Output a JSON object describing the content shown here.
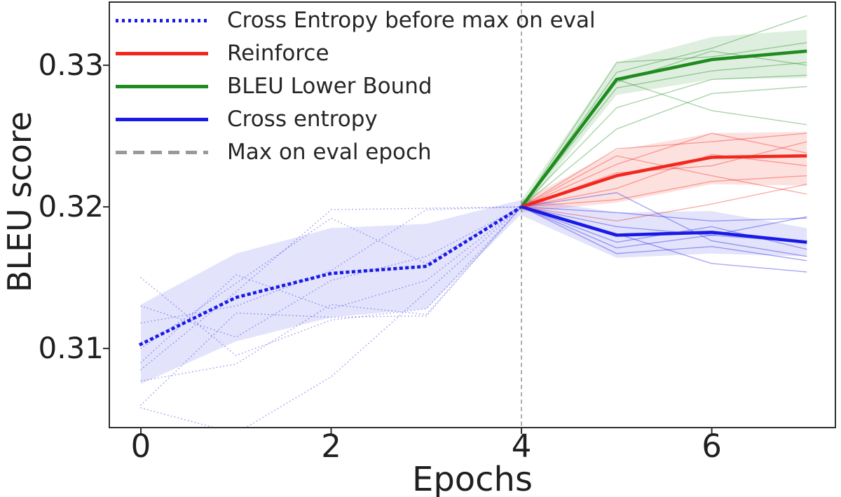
{
  "chart_data": {
    "type": "line",
    "title": "",
    "xlabel": "Epochs",
    "ylabel": "BLEU score",
    "xlim": [
      -0.3315,
      7.2995
    ],
    "ylim": [
      0.30441,
      0.33446
    ],
    "grid": false,
    "legend_position": "upper left",
    "xticks": {
      "values": [
        0,
        2,
        4,
        6
      ],
      "labels": [
        "0",
        "2",
        "4",
        "6"
      ]
    },
    "yticks": {
      "values": [
        0.31,
        0.32,
        0.33
      ],
      "labels": [
        "0.31",
        "0.32",
        "0.33"
      ]
    },
    "vline": {
      "x": 4,
      "label": "Max on eval epoch",
      "color": "#8a8a8a",
      "style": "dashed"
    },
    "colors": {
      "blue": "#1a1ae6",
      "red": "#f2281e",
      "green": "#1e8c1e",
      "gray": "#999999",
      "frame": "#2e2e2e",
      "text": "#1f1f1f"
    },
    "legend": [
      {
        "label": "Cross Entropy before max on eval",
        "color": "#1a1ae6",
        "style": "dotted"
      },
      {
        "label": "Reinforce",
        "color": "#f2281e",
        "style": "solid"
      },
      {
        "label": "BLEU Lower Bound",
        "color": "#1e8c1e",
        "style": "solid"
      },
      {
        "label": "Cross entropy",
        "color": "#1a1ae6",
        "style": "solid"
      },
      {
        "label": "Max on eval epoch",
        "color": "#999999",
        "style": "dashed"
      }
    ],
    "series": [
      {
        "name": "Cross Entropy before max on eval",
        "style": "dotted",
        "color": "#1a1ae6",
        "x": [
          0,
          1,
          2,
          3,
          4
        ],
        "mean": [
          0.3103,
          0.3136,
          0.3153,
          0.3158,
          0.32
        ],
        "band_lower": [
          0.3075,
          0.3105,
          0.3122,
          0.3128,
          0.3195
        ],
        "band_upper": [
          0.3131,
          0.3167,
          0.3185,
          0.3188,
          0.3205
        ],
        "band_opacity": 0.12,
        "runs": [
          [
            0.315,
            0.3095,
            0.312,
            0.3128,
            0.32
          ],
          [
            0.3085,
            0.314,
            0.3198,
            0.3199,
            0.32
          ],
          [
            0.3077,
            0.3089,
            0.3131,
            0.3124,
            0.32
          ],
          [
            0.3058,
            0.304,
            0.308,
            0.314,
            0.32
          ],
          [
            0.31,
            0.3146,
            0.3192,
            0.316,
            0.32
          ],
          [
            0.306,
            0.3125,
            0.3122,
            0.3123,
            0.32
          ],
          [
            0.313,
            0.3108,
            0.3148,
            0.3165,
            0.32
          ],
          [
            0.309,
            0.3152,
            0.3128,
            0.3148,
            0.32
          ],
          [
            0.3118,
            0.313,
            0.3155,
            0.3198,
            0.32
          ]
        ]
      },
      {
        "name": "BLEU Lower Bound",
        "style": "solid",
        "color": "#1e8c1e",
        "x": [
          4,
          5,
          6,
          7
        ],
        "mean": [
          0.32,
          0.329,
          0.3304,
          0.331
        ],
        "band_lower": [
          0.3196,
          0.3279,
          0.329,
          0.3291
        ],
        "band_upper": [
          0.3205,
          0.3302,
          0.332,
          0.3325
        ],
        "band_opacity": 0.14,
        "runs": [
          [
            0.32,
            0.3295,
            0.3312,
            0.3335
          ],
          [
            0.32,
            0.3302,
            0.3306,
            0.3316
          ],
          [
            0.32,
            0.3288,
            0.331,
            0.33
          ],
          [
            0.32,
            0.3284,
            0.3296,
            0.3302
          ],
          [
            0.32,
            0.327,
            0.329,
            0.3293
          ],
          [
            0.32,
            0.329,
            0.3268,
            0.3258
          ],
          [
            0.32,
            0.3255,
            0.328,
            0.3285
          ]
        ]
      },
      {
        "name": "Reinforce",
        "style": "solid",
        "color": "#f2281e",
        "x": [
          4,
          5,
          6,
          7
        ],
        "mean": [
          0.32,
          0.3222,
          0.3235,
          0.3236
        ],
        "band_lower": [
          0.3196,
          0.3203,
          0.3216,
          0.3215
        ],
        "band_upper": [
          0.3204,
          0.324,
          0.3252,
          0.3253
        ],
        "band_opacity": 0.14,
        "runs": [
          [
            0.32,
            0.3241,
            0.3246,
            0.3252
          ],
          [
            0.32,
            0.323,
            0.3252,
            0.3238
          ],
          [
            0.32,
            0.3224,
            0.3229,
            0.3246
          ],
          [
            0.32,
            0.3213,
            0.3237,
            0.3229
          ],
          [
            0.32,
            0.3205,
            0.3218,
            0.3222
          ],
          [
            0.32,
            0.319,
            0.3202,
            0.3216
          ],
          [
            0.32,
            0.3236,
            0.3222,
            0.3209
          ]
        ]
      },
      {
        "name": "Cross entropy",
        "style": "solid",
        "color": "#1a1ae6",
        "x": [
          4,
          5,
          6,
          7
        ],
        "mean": [
          0.32,
          0.318,
          0.3182,
          0.3175
        ],
        "band_lower": [
          0.3194,
          0.3164,
          0.3167,
          0.3165
        ],
        "band_upper": [
          0.3206,
          0.3196,
          0.3197,
          0.3185
        ],
        "band_opacity": 0.12,
        "runs": [
          [
            0.32,
            0.3196,
            0.319,
            0.3192
          ],
          [
            0.32,
            0.3186,
            0.318,
            0.3175
          ],
          [
            0.32,
            0.3175,
            0.3186,
            0.317
          ],
          [
            0.32,
            0.3167,
            0.3172,
            0.3162
          ],
          [
            0.32,
            0.321,
            0.3176,
            0.3165
          ],
          [
            0.32,
            0.3181,
            0.316,
            0.3154
          ],
          [
            0.32,
            0.3171,
            0.318,
            0.3193
          ]
        ]
      }
    ]
  }
}
